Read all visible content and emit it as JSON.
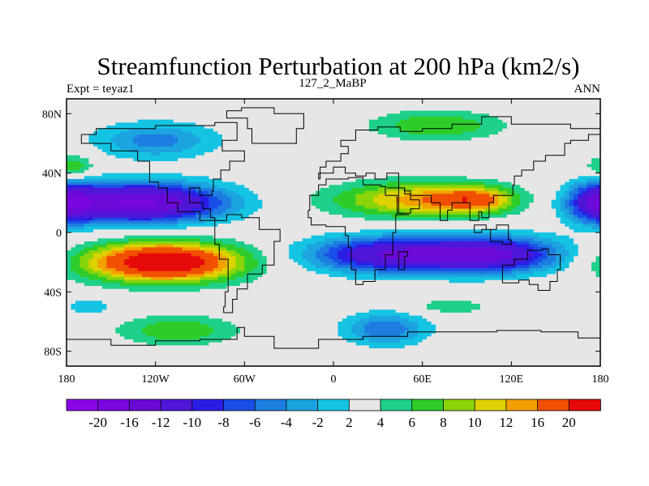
{
  "chart_data": {
    "type": "heatmap",
    "title": "Streamfunction Perturbation at 200 hPa (km2/s)",
    "subtitle_left": "Expt = teyaz1",
    "subtitle_center": "127_2_MaBP",
    "subtitle_right": "ANN",
    "xlim": [
      -180,
      180
    ],
    "ylim": [
      -90,
      90
    ],
    "x_ticks": [
      {
        "value": -180,
        "label": "180"
      },
      {
        "value": -120,
        "label": "120W"
      },
      {
        "value": -60,
        "label": "60W"
      },
      {
        "value": 0,
        "label": "0"
      },
      {
        "value": 60,
        "label": "60E"
      },
      {
        "value": 120,
        "label": "120E"
      },
      {
        "value": 180,
        "label": "180"
      }
    ],
    "y_ticks": [
      {
        "value": 80,
        "label": "80N"
      },
      {
        "value": 40,
        "label": "40N"
      },
      {
        "value": 0,
        "label": "0"
      },
      {
        "value": -40,
        "label": "40S"
      },
      {
        "value": -80,
        "label": "80S"
      }
    ],
    "contour_levels": [
      -20,
      -16,
      -12,
      -10,
      -8,
      -6,
      -4,
      -2,
      2,
      4,
      6,
      8,
      10,
      12,
      16,
      20
    ],
    "colorbar_labels": [
      "-20",
      "-16",
      "-12",
      "-10",
      "-8",
      "-6",
      "-4",
      "-2",
      "2",
      "4",
      "6",
      "8",
      "10",
      "12",
      "16",
      "20"
    ],
    "colors": [
      "#7a06e0",
      "#6a0ad6",
      "#4f16d8",
      "#2a1ee6",
      "#1a4ee8",
      "#1e7de0",
      "#1ca4e0",
      "#14c4e2",
      "#e6e6e6",
      "#1ed08a",
      "#2ecc2a",
      "#8ad40a",
      "#dcd200",
      "#f2a000",
      "#f05000",
      "#e60a0a"
    ],
    "features": [
      {
        "lon": -130,
        "lat": 20,
        "amp": -21,
        "wlon": 55,
        "wlat": 13
      },
      {
        "lon": -115,
        "lat": -20,
        "amp": 21,
        "wlon": 52,
        "wlat": 13
      },
      {
        "lon": 40,
        "lat": -15,
        "amp": -16,
        "wlon": 55,
        "wlat": 12
      },
      {
        "lon": 110,
        "lat": -15,
        "amp": -15,
        "wlon": 45,
        "wlat": 12
      },
      {
        "lon": 60,
        "lat": 22,
        "amp": 11,
        "wlon": 60,
        "wlat": 12
      },
      {
        "lon": 95,
        "lat": 22,
        "amp": 8,
        "wlon": 25,
        "wlat": 8
      },
      {
        "lon": -120,
        "lat": 62,
        "amp": -7,
        "wlon": 40,
        "wlat": 12
      },
      {
        "lon": 35,
        "lat": -65,
        "amp": -8,
        "wlon": 28,
        "wlat": 11
      },
      {
        "lon": 70,
        "lat": 72,
        "amp": 6,
        "wlon": 45,
        "wlat": 10
      },
      {
        "lon": -105,
        "lat": -66,
        "amp": 6,
        "wlon": 40,
        "wlat": 10
      },
      {
        "lon": 80,
        "lat": -50,
        "amp": 4,
        "wlon": 25,
        "wlat": 5
      },
      {
        "lon": -175,
        "lat": 44,
        "amp": 6,
        "wlon": 14,
        "wlat": 8
      },
      {
        "lon": 180,
        "lat": 20,
        "amp": -12,
        "wlon": 20,
        "wlat": 14
      },
      {
        "lon": -165,
        "lat": -50,
        "amp": -4,
        "wlon": 16,
        "wlat": 6
      }
    ]
  }
}
